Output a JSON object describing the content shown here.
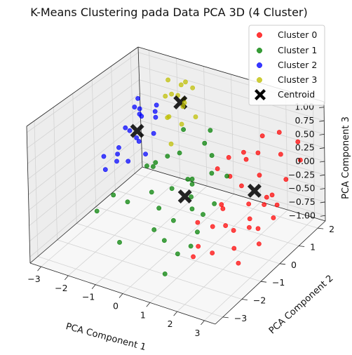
{
  "chart_data": {
    "type": "scatter",
    "title": "K-Means Clustering pada Data PCA 3D (4 Cluster)",
    "xlabel": "PCA Component 1",
    "ylabel": "PCA Component 2",
    "zlabel": "PCA Component 3",
    "xlim": [
      -3.4,
      3.4
    ],
    "ylim": [
      -3.4,
      2.4
    ],
    "zlim": [
      -1.1,
      1.1
    ],
    "xticks": [
      -3,
      -2,
      -1,
      0,
      1,
      2,
      3
    ],
    "yticks": [
      -3,
      -2,
      -1,
      0,
      1,
      2
    ],
    "zticks": [
      -1.0,
      -0.75,
      -0.5,
      -0.25,
      0.0,
      0.25,
      0.5,
      0.75,
      1.0
    ],
    "legend_position": "top-right",
    "grid": true,
    "series": [
      {
        "name": "Cluster 0",
        "color": "#ff0000",
        "points": [
          [
            2.2,
            1.6,
            0.65
          ],
          [
            2.8,
            1.7,
            0.55
          ],
          [
            3.1,
            1.4,
            0.35
          ],
          [
            2.6,
            1.1,
            0.45
          ],
          [
            1.8,
            1.3,
            0.6
          ],
          [
            1.4,
            0.9,
            0.35
          ],
          [
            1.0,
            0.7,
            0.25
          ],
          [
            0.8,
            0.4,
            0.1
          ],
          [
            1.6,
            0.5,
            -0.1
          ],
          [
            2.0,
            0.3,
            -0.3
          ],
          [
            2.5,
            0.8,
            -0.2
          ],
          [
            2.9,
            0.3,
            -0.4
          ],
          [
            3.0,
            0.8,
            0.15
          ],
          [
            2.3,
            -0.1,
            -0.55
          ],
          [
            2.7,
            0.1,
            -0.15
          ],
          [
            1.8,
            -0.2,
            -0.65
          ],
          [
            2.1,
            -0.6,
            -0.8
          ],
          [
            1.5,
            -0.4,
            -0.2
          ],
          [
            1.2,
            0.1,
            -0.45
          ],
          [
            2.4,
            -0.8,
            -0.95
          ],
          [
            1.6,
            -1.0,
            -0.4
          ],
          [
            1.0,
            -0.9,
            -0.85
          ],
          [
            1.9,
            1.0,
            0.0
          ],
          [
            2.8,
            -0.3,
            -0.7
          ],
          [
            0.7,
            -0.5,
            -0.6
          ],
          [
            1.3,
            -0.6,
            -1.0
          ],
          [
            2.2,
            0.5,
            -0.75
          ],
          [
            2.6,
            -0.5,
            -0.25
          ],
          [
            1.7,
            0.6,
            0.35
          ],
          [
            3.0,
            -0.2,
            0.1
          ],
          [
            1.5,
            1.5,
            0.2
          ],
          [
            2.4,
            1.2,
            -0.5
          ],
          [
            1.1,
            -1.3,
            -0.9
          ],
          [
            2.0,
            -0.9,
            -0.35
          ],
          [
            0.9,
            0.9,
            -0.15
          ]
        ]
      },
      {
        "name": "Cluster 1",
        "color": "#008000",
        "points": [
          [
            0.2,
            0.6,
            0.4
          ],
          [
            -0.5,
            0.3,
            0.2
          ],
          [
            0.6,
            0.4,
            0.3
          ],
          [
            -0.8,
            0.1,
            0.15
          ],
          [
            0.0,
            0.0,
            -0.1
          ],
          [
            0.3,
            -0.2,
            0.0
          ],
          [
            0.8,
            0.1,
            0.1
          ],
          [
            -0.3,
            -0.4,
            -0.2
          ],
          [
            0.5,
            -0.5,
            -0.4
          ],
          [
            -0.9,
            -0.6,
            -0.3
          ],
          [
            -1.2,
            -0.4,
            0.05
          ],
          [
            0.1,
            -0.9,
            -0.55
          ],
          [
            0.9,
            -0.8,
            -0.65
          ],
          [
            -0.4,
            -1.2,
            -0.7
          ],
          [
            0.6,
            -1.4,
            -0.9
          ],
          [
            -1.5,
            -1.0,
            -0.45
          ],
          [
            0.2,
            0.9,
            0.55
          ],
          [
            1.0,
            0.6,
            -0.05
          ],
          [
            -0.7,
            0.8,
            0.45
          ],
          [
            -1.8,
            -1.3,
            -0.3
          ],
          [
            0.4,
            -1.8,
            -0.6
          ],
          [
            -1.1,
            -2.0,
            -0.8
          ],
          [
            0.7,
            -2.2,
            -1.0
          ],
          [
            -0.1,
            0.3,
            -0.5
          ],
          [
            1.1,
            -0.2,
            -0.3
          ],
          [
            -0.6,
            -0.8,
            0.3
          ],
          [
            0.0,
            -1.5,
            -0.2
          ],
          [
            -2.2,
            -1.6,
            -0.55
          ],
          [
            0.8,
            -1.0,
            -0.85
          ],
          [
            -0.2,
            0.5,
            -0.35
          ],
          [
            -1.4,
            0.2,
            -0.15
          ],
          [
            0.4,
            0.2,
            -0.7
          ]
        ]
      },
      {
        "name": "Cluster 2",
        "color": "#0000ff",
        "points": [
          [
            -2.5,
            1.2,
            0.3
          ],
          [
            -2.8,
            1.0,
            0.05
          ],
          [
            -2.2,
            1.5,
            0.25
          ],
          [
            -3.0,
            0.7,
            -0.2
          ],
          [
            -2.7,
            1.4,
            0.35
          ],
          [
            -2.4,
            0.9,
            -0.05
          ],
          [
            -3.1,
            1.2,
            0.0
          ],
          [
            -2.0,
            1.1,
            0.1
          ],
          [
            -2.6,
            0.6,
            -0.35
          ],
          [
            -3.2,
            0.9,
            -0.4
          ],
          [
            -2.3,
            1.7,
            0.4
          ],
          [
            -2.9,
            1.6,
            0.45
          ],
          [
            -2.1,
            0.8,
            -0.2
          ],
          [
            -3.3,
            0.4,
            -0.55
          ],
          [
            -2.8,
            0.3,
            -0.3
          ],
          [
            -2.5,
            1.9,
            0.2
          ],
          [
            -3.0,
            1.8,
            0.1
          ],
          [
            -2.2,
            0.5,
            0.15
          ],
          [
            -3.2,
            0.2,
            -0.25
          ],
          [
            -2.6,
            1.0,
            0.5
          ]
        ]
      },
      {
        "name": "Cluster 3",
        "color": "#bfbf00",
        "points": [
          [
            -1.6,
            2.0,
            0.8
          ],
          [
            -1.3,
            1.8,
            0.95
          ],
          [
            -1.9,
            1.6,
            0.65
          ],
          [
            -1.4,
            2.3,
            0.7
          ],
          [
            -1.8,
            2.1,
            0.55
          ],
          [
            -1.2,
            1.5,
            0.6
          ],
          [
            -2.0,
            1.9,
            0.85
          ],
          [
            -1.5,
            1.2,
            0.45
          ],
          [
            -1.7,
            1.4,
            0.35
          ],
          [
            -1.1,
            2.0,
            0.3
          ],
          [
            -2.1,
            2.2,
            0.5
          ],
          [
            -1.4,
            1.7,
            0.2
          ],
          [
            -1.0,
            1.3,
            0.75
          ],
          [
            -1.8,
            2.4,
            0.4
          ],
          [
            -1.3,
            1.0,
            0.05
          ]
        ]
      }
    ],
    "centroids": {
      "name": "Centroid",
      "color": "#000000",
      "points": [
        [
          2.0,
          0.6,
          -0.15
        ],
        [
          0.1,
          -0.3,
          -0.3
        ],
        [
          -2.6,
          1.1,
          0.05
        ],
        [
          -1.5,
          1.8,
          0.55
        ]
      ]
    }
  }
}
